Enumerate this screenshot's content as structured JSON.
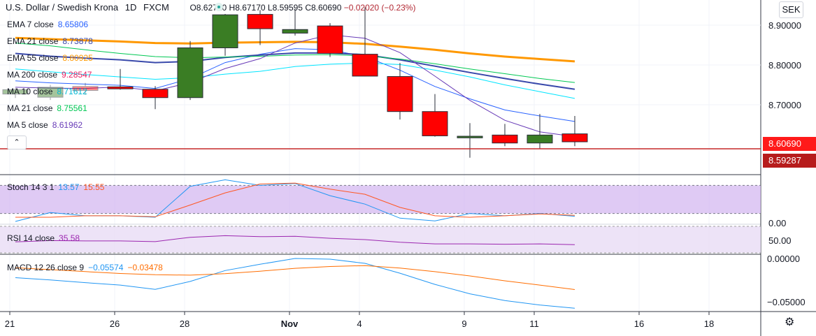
{
  "header": {
    "symbol": "U.S. Dollar / Swedish Krona",
    "interval": "1D",
    "source": "FXCM",
    "open": "O8.62710",
    "high": "H8.67170",
    "low": "L8.59595",
    "close": "C8.60690",
    "change": "−0.02020 (−0.23%)"
  },
  "currency_button": "SEK",
  "collapse_icon": "chevron-up-icon",
  "settings_icon": "gear-icon",
  "indicators": [
    {
      "name": "EMA 7 close",
      "value": "8.65806",
      "color": "#2962ff"
    },
    {
      "name": "EMA 21 close",
      "value": "8.73878",
      "color": "#3949ab"
    },
    {
      "name": "EMA 55 close",
      "value": "8.80925",
      "color": "#ff9800"
    },
    {
      "name": "MA 200 close",
      "value": "9.28547",
      "color": "#e91e63"
    },
    {
      "name": "MA 10 close",
      "value": "8.71612",
      "color": "#00e5ff"
    },
    {
      "name": "MA 21 close",
      "value": "8.75561",
      "color": "#00c853"
    },
    {
      "name": "MA 5 close",
      "value": "8.61962",
      "color": "#673ab7"
    }
  ],
  "price_tags": [
    {
      "value": "8.60690",
      "color": "#ff1a1a"
    },
    {
      "value": "8.59287",
      "color": "#b71c1c"
    }
  ],
  "stoch": {
    "label": "Stoch 14 3 1",
    "k": "13.57",
    "d": "15.55",
    "k_color": "#2196f3",
    "d_color": "#ff5722",
    "band_color": "#d1b3f0"
  },
  "rsi": {
    "label": "RSI 14 close",
    "value": "35.58",
    "color": "#9c27b0"
  },
  "macd": {
    "label": "MACD 12 26 close 9",
    "macd": "−0.05574",
    "signal": "−0.03478",
    "macd_color": "#2196f3",
    "signal_color": "#ff6d00"
  },
  "chart_data": [
    {
      "type": "candlestick",
      "panel": "price",
      "y_ticks": [
        "8.90000",
        "8.80000",
        "8.70000"
      ],
      "ylim": [
        8.575,
        8.935
      ],
      "x_ticks": [
        "21",
        "26",
        "28",
        "Nov",
        "4",
        "9",
        "11",
        "16",
        "18"
      ],
      "candles": [
        {
          "o": 8.727,
          "h": 8.742,
          "l": 8.717,
          "c": 8.738
        },
        {
          "o": 8.719,
          "h": 8.75,
          "l": 8.712,
          "c": 8.744
        },
        {
          "o": 8.746,
          "h": 8.755,
          "l": 8.725,
          "c": 8.736
        },
        {
          "o": 8.745,
          "h": 8.79,
          "l": 8.738,
          "c": 8.74
        },
        {
          "o": 8.739,
          "h": 8.747,
          "l": 8.689,
          "c": 8.718
        },
        {
          "o": 8.718,
          "h": 8.86,
          "l": 8.712,
          "c": 8.843
        },
        {
          "o": 8.843,
          "h": 8.928,
          "l": 8.823,
          "c": 8.926
        },
        {
          "o": 8.927,
          "h": 8.938,
          "l": 8.85,
          "c": 8.891
        },
        {
          "o": 8.88,
          "h": 8.94,
          "l": 8.874,
          "c": 8.889
        },
        {
          "o": 8.898,
          "h": 8.905,
          "l": 8.82,
          "c": 8.829
        },
        {
          "o": 8.827,
          "h": 8.945,
          "l": 8.771,
          "c": 8.772
        },
        {
          "o": 8.771,
          "h": 8.805,
          "l": 8.663,
          "c": 8.683
        },
        {
          "o": 8.683,
          "h": 8.727,
          "l": 8.62,
          "c": 8.622
        },
        {
          "o": 8.617,
          "h": 8.654,
          "l": 8.567,
          "c": 8.621
        },
        {
          "o": 8.624,
          "h": 8.652,
          "l": 8.596,
          "c": 8.604
        },
        {
          "o": 8.604,
          "h": 8.677,
          "l": 8.589,
          "c": 8.624
        },
        {
          "o": 8.627,
          "h": 8.672,
          "l": 8.596,
          "c": 8.607
        }
      ],
      "series": [
        {
          "name": "EMA 7 close",
          "values": [
            8.76,
            8.755,
            8.752,
            8.749,
            8.741,
            8.766,
            8.806,
            8.827,
            8.841,
            8.838,
            8.821,
            8.787,
            8.746,
            8.715,
            8.687,
            8.672,
            8.658
          ]
        },
        {
          "name": "EMA 21 close",
          "values": [
            8.829,
            8.822,
            8.817,
            8.813,
            8.806,
            8.809,
            8.819,
            8.825,
            8.83,
            8.83,
            8.826,
            8.813,
            8.797,
            8.781,
            8.766,
            8.752,
            8.739
          ]
        },
        {
          "name": "EMA 55 close",
          "values": [
            8.868,
            8.865,
            8.862,
            8.859,
            8.855,
            8.854,
            8.856,
            8.857,
            8.858,
            8.857,
            8.853,
            8.846,
            8.838,
            8.829,
            8.821,
            8.815,
            8.809
          ]
        },
        {
          "name": "MA 10 close",
          "values": [
            8.79,
            8.783,
            8.776,
            8.77,
            8.764,
            8.768,
            8.777,
            8.784,
            8.796,
            8.802,
            8.805,
            8.801,
            8.787,
            8.77,
            8.75,
            8.733,
            8.716
          ]
        },
        {
          "name": "MA 21 close",
          "values": [
            8.855,
            8.848,
            8.838,
            8.829,
            8.821,
            8.818,
            8.82,
            8.822,
            8.825,
            8.826,
            8.823,
            8.815,
            8.803,
            8.79,
            8.778,
            8.766,
            8.756
          ]
        },
        {
          "name": "MA 5 close",
          "values": [
            8.744,
            8.742,
            8.741,
            8.745,
            8.735,
            8.756,
            8.791,
            8.816,
            8.855,
            8.876,
            8.867,
            8.831,
            8.772,
            8.711,
            8.661,
            8.632,
            8.62
          ]
        }
      ]
    },
    {
      "type": "line",
      "panel": "stoch",
      "y_ticks": [
        "0.00"
      ],
      "ylim": [
        0,
        100
      ],
      "band": [
        20,
        80
      ],
      "series": [
        {
          "name": "K",
          "values": [
            3,
            22,
            15,
            15,
            12,
            78,
            92,
            80,
            84,
            58,
            40,
            10,
            4,
            20,
            15,
            20,
            14
          ]
        },
        {
          "name": "D",
          "values": [
            12,
            12,
            15,
            15,
            13,
            38,
            64,
            83,
            85,
            72,
            61,
            33,
            15,
            12,
            15,
            19,
            16
          ]
        }
      ]
    },
    {
      "type": "line",
      "panel": "rsi",
      "y_ticks": [
        "50.00"
      ],
      "ylim": [
        10,
        90
      ],
      "band": [
        30,
        70
      ],
      "series": [
        {
          "name": "RSI",
          "values": [
            44,
            48,
            47,
            47,
            45,
            58,
            63,
            60,
            61,
            55,
            51,
            43,
            38,
            38,
            37,
            38,
            35.6
          ]
        }
      ]
    },
    {
      "type": "line",
      "panel": "macd",
      "y_ticks": [
        "0.00000",
        "−0.05000"
      ],
      "ylim": [
        -0.0603,
        0.0022
      ],
      "series": [
        {
          "name": "MACD",
          "values": [
            -0.0215,
            -0.024,
            -0.027,
            -0.0298,
            -0.0345,
            -0.0257,
            -0.0135,
            -0.0065,
            0.0,
            -0.0008,
            -0.0055,
            -0.0165,
            -0.029,
            -0.0395,
            -0.047,
            -0.052,
            -0.0557
          ]
        },
        {
          "name": "Signal",
          "values": [
            -0.0104,
            -0.0125,
            -0.0147,
            -0.0168,
            -0.0182,
            -0.0187,
            -0.017,
            -0.0142,
            -0.011,
            -0.009,
            -0.008,
            -0.0108,
            -0.0148,
            -0.0195,
            -0.025,
            -0.0298,
            -0.0348
          ]
        }
      ]
    }
  ]
}
